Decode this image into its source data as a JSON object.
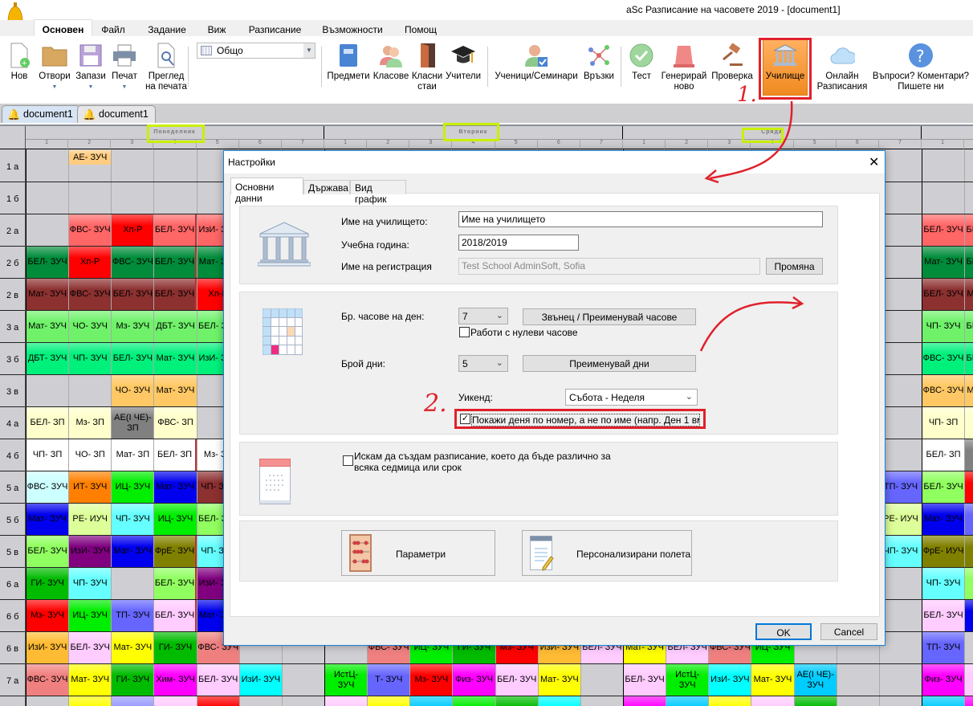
{
  "app": {
    "title": "aSc Разписание на часовете 2019  - [document1]"
  },
  "ribbon_tabs": [
    {
      "label": "Основен",
      "active": true
    },
    {
      "label": "Файл"
    },
    {
      "label": "Задание"
    },
    {
      "label": "Виж"
    },
    {
      "label": "Разписание"
    },
    {
      "label": "Възможности"
    },
    {
      "label": "Помощ"
    }
  ],
  "ribbon": {
    "new": "Нов",
    "open": "Отвори",
    "save": "Запази",
    "print": "Печат",
    "preview_1": "Преглед",
    "preview_2": "на печата",
    "view_select": "Общо",
    "subjects": "Предмети",
    "classes": "Класове",
    "rooms_1": "Класни",
    "rooms_2": "стаи",
    "teachers": "Учители",
    "students": "Ученици/Семинари",
    "relations": "Връзки",
    "test": "Тест",
    "generate_1": "Генерирай",
    "generate_2": "ново",
    "check": "Проверка",
    "school": "Училище",
    "online_1": "Онлайн",
    "online_2": "Разписания",
    "help_1": "Въпроси? Коментари?",
    "help_2": "Пишете ни"
  },
  "doc_tabs": [
    "document1",
    "document1"
  ],
  "grid": {
    "days": [
      "Понеделник",
      "Вторник",
      "Сряда",
      ""
    ],
    "periods": [
      "1",
      "2",
      "3",
      "4",
      "5",
      "6",
      "7"
    ],
    "rows": [
      {
        "label": "1 а",
        "cells": [
          {
            "c": 1,
            "t": "АЕ- ЗУЧ",
            "bg": "#ffcc80",
            "half": true
          }
        ]
      },
      {
        "label": "1 б",
        "cells": []
      },
      {
        "label": "2 а",
        "cells": [
          {
            "c": 1,
            "t": "ФВС- ЗУЧ",
            "bg": "#ff6666"
          },
          {
            "c": 2,
            "t": "Хп-Р",
            "bg": "#ff0000"
          },
          {
            "c": 3,
            "t": "БЕЛ- ЗУЧ",
            "bg": "#ff6666"
          },
          {
            "c": 4,
            "t": "ИзИ- ЗУЧ",
            "bg": "#ff6666"
          },
          {
            "c": 21,
            "t": "БЕЛ- ЗУЧ",
            "bg": "#ff6666"
          },
          {
            "c": 22,
            "t": "БЕЛ- ЗУЧ",
            "bg": "#ff6666"
          }
        ]
      },
      {
        "label": "2 б",
        "cells": [
          {
            "c": 0,
            "t": "БЕЛ- ЗУЧ",
            "bg": "#008c3a"
          },
          {
            "c": 1,
            "t": "Хп-Р",
            "bg": "#ff0000"
          },
          {
            "c": 2,
            "t": "ФВС- ЗУЧ",
            "bg": "#008c3a"
          },
          {
            "c": 3,
            "t": "БЕЛ- ЗУЧ",
            "bg": "#008c3a"
          },
          {
            "c": 4,
            "t": "Мат- ЗУЧ",
            "bg": "#008c3a"
          },
          {
            "c": 21,
            "t": "Мат- ЗУЧ",
            "bg": "#008c3a"
          },
          {
            "c": 22,
            "t": "БЕЛ- ЗУЧ",
            "bg": "#008c3a"
          }
        ]
      },
      {
        "label": "2 в",
        "cells": [
          {
            "c": 0,
            "t": "Мат- ЗУЧ",
            "bg": "#8c3030"
          },
          {
            "c": 1,
            "t": "ФВС- ЗУЧ",
            "bg": "#8c3030"
          },
          {
            "c": 2,
            "t": "БЕЛ- ЗУЧ",
            "bg": "#8c3030"
          },
          {
            "c": 3,
            "t": "БЕЛ- ЗУЧ",
            "bg": "#8c3030"
          },
          {
            "c": 4,
            "t": "Хп-Р",
            "bg": "#ff0000"
          },
          {
            "c": 21,
            "t": "БЕЛ- ЗУЧ",
            "bg": "#8c3030"
          },
          {
            "c": 22,
            "t": "Мат- ЗУЧ",
            "bg": "#8c3030"
          }
        ]
      },
      {
        "label": "3 а",
        "cells": [
          {
            "c": 0,
            "t": "Мат- ЗУЧ",
            "bg": "#6ff26a"
          },
          {
            "c": 1,
            "t": "ЧО- ЗУЧ",
            "bg": "#6ff26a"
          },
          {
            "c": 2,
            "t": "Мз- ЗУЧ",
            "bg": "#6ff26a"
          },
          {
            "c": 3,
            "t": "ДБТ- ЗУЧ",
            "bg": "#6ff26a"
          },
          {
            "c": 4,
            "t": "БЕЛ- ЗУЧ",
            "bg": "#6ff26a"
          },
          {
            "c": 21,
            "t": "ЧП- ЗУЧ",
            "bg": "#6ff26a"
          },
          {
            "c": 22,
            "t": "БЕЛ- ЗУЧ",
            "bg": "#6ff26a"
          }
        ]
      },
      {
        "label": "3 б",
        "cells": [
          {
            "c": 0,
            "t": "ДБТ- ЗУЧ",
            "bg": "#00f07c"
          },
          {
            "c": 1,
            "t": "ЧП- ЗУЧ",
            "bg": "#00f07c"
          },
          {
            "c": 2,
            "t": "БЕЛ- ЗУЧ",
            "bg": "#00f07c"
          },
          {
            "c": 3,
            "t": "Мат- ЗУЧ",
            "bg": "#00f07c"
          },
          {
            "c": 4,
            "t": "ИзИ- ЗУЧ",
            "bg": "#00f07c"
          },
          {
            "c": 21,
            "t": "ФВС- ЗУЧ",
            "bg": "#00f07c"
          },
          {
            "c": 22,
            "t": "БЕЛ- ЗУЧ",
            "bg": "#00f07c"
          }
        ]
      },
      {
        "label": "3 в",
        "cells": [
          {
            "c": 2,
            "t": "ЧО- ЗУЧ",
            "bg": "#ffc864"
          },
          {
            "c": 3,
            "t": "Мат- ЗУЧ",
            "bg": "#ffc864"
          },
          {
            "c": 21,
            "t": "ФВС- ЗУЧ",
            "bg": "#ffc864"
          },
          {
            "c": 22,
            "t": "Мат- ЗУЧ",
            "bg": "#ffc864"
          }
        ]
      },
      {
        "label": "4 а",
        "cells": [
          {
            "c": 0,
            "t": "БЕЛ- ЗП",
            "bg": "#ffffcc"
          },
          {
            "c": 1,
            "t": "Мз- ЗП",
            "bg": "#ffffcc"
          },
          {
            "c": 2,
            "t": "АЕ(І ЧЕ)- ЗП",
            "bg": "#808080"
          },
          {
            "c": 3,
            "t": "ФВС- ЗП",
            "bg": "#ffffcc"
          },
          {
            "c": 21,
            "t": "ЧП- ЗП",
            "bg": "#ffffcc"
          },
          {
            "c": 22,
            "t": "И",
            "bg": "#ffffcc"
          }
        ]
      },
      {
        "label": "4 б",
        "cells": [
          {
            "c": 0,
            "t": "ЧП- ЗП",
            "bg": "#ffffff"
          },
          {
            "c": 1,
            "t": "ЧО- ЗП",
            "bg": "#ffffff"
          },
          {
            "c": 2,
            "t": "Мат- ЗП",
            "bg": "#ffffff"
          },
          {
            "c": 3,
            "t": "БЕЛ- ЗП",
            "bg": "#ffffff"
          },
          {
            "c": 4,
            "t": "Мз- ЗП",
            "bg": "#ffffff"
          },
          {
            "c": 21,
            "t": "БЕЛ- ЗП",
            "bg": "#ffffff"
          },
          {
            "c": 22,
            "t": "А З",
            "bg": "#808080"
          }
        ]
      },
      {
        "label": "5 а",
        "cells": [
          {
            "c": 0,
            "t": "ФВС- ЗУЧ",
            "bg": "#ccffff"
          },
          {
            "c": 1,
            "t": "ИТ- ЗУЧ",
            "bg": "#ff8000"
          },
          {
            "c": 2,
            "t": "ИЦ- ЗУЧ",
            "bg": "#00ee00"
          },
          {
            "c": 3,
            "t": "Мат- ЗУЧ",
            "bg": "#0000ee"
          },
          {
            "c": 4,
            "t": "ЧП- ЗУЧ",
            "bg": "#8c3030"
          },
          {
            "c": 20,
            "t": "ТП- ЗУЧ",
            "bg": "#6666ff"
          },
          {
            "c": 21,
            "t": "БЕЛ- ЗУЧ",
            "bg": "#90ff60"
          },
          {
            "c": 22,
            "t": "М",
            "bg": "#ff0000"
          }
        ]
      },
      {
        "label": "5 б",
        "cells": [
          {
            "c": 0,
            "t": "Мат- ЗУЧ",
            "bg": "#0000ee"
          },
          {
            "c": 1,
            "t": "РЕ- ИУЧ",
            "bg": "#ddff99"
          },
          {
            "c": 2,
            "t": "ЧП- ЗУЧ",
            "bg": "#66ffff"
          },
          {
            "c": 3,
            "t": "ИЦ- ЗУЧ",
            "bg": "#00ee00"
          },
          {
            "c": 4,
            "t": "БЕЛ- ЗУЧ",
            "bg": "#90ff60"
          },
          {
            "c": 20,
            "t": "РЕ- ИУЧ",
            "bg": "#ddff99"
          },
          {
            "c": 21,
            "t": "Мат- ЗУЧ",
            "bg": "#0000ee"
          },
          {
            "c": 22,
            "t": "Т",
            "bg": "#6666ff"
          }
        ]
      },
      {
        "label": "5 в",
        "cells": [
          {
            "c": 0,
            "t": "БЕЛ- ЗУЧ",
            "bg": "#90ff60"
          },
          {
            "c": 1,
            "t": "ИзИ- ЗУЧ",
            "bg": "#800080"
          },
          {
            "c": 2,
            "t": "Мат- ЗУЧ",
            "bg": "#0000ee"
          },
          {
            "c": 3,
            "t": "ФрЕ- ЗУЧ",
            "bg": "#808000"
          },
          {
            "c": 4,
            "t": "ЧП- ЗУЧ",
            "bg": "#66ffff"
          },
          {
            "c": 20,
            "t": "ЧП- ЗУЧ",
            "bg": "#66ffff"
          },
          {
            "c": 21,
            "t": "ФрЕ- ИУЧ",
            "bg": "#808000"
          },
          {
            "c": 22,
            "t": "Ф",
            "bg": "#808000"
          }
        ]
      },
      {
        "label": "6 а",
        "cells": [
          {
            "c": 0,
            "t": "ГИ- ЗУЧ",
            "bg": "#00bb00"
          },
          {
            "c": 1,
            "t": "ЧП- ЗУЧ",
            "bg": "#66ffff"
          },
          {
            "c": 3,
            "t": "БЕЛ- ЗУЧ",
            "bg": "#90ff60"
          },
          {
            "c": 4,
            "t": "ИзИ- ЗУЧ",
            "bg": "#800080"
          },
          {
            "c": 21,
            "t": "ЧП- ЗУЧ",
            "bg": "#66ffff"
          },
          {
            "c": 22,
            "t": "Б",
            "bg": "#90ff60"
          }
        ]
      },
      {
        "label": "6 б",
        "cells": [
          {
            "c": 0,
            "t": "Мз- ЗУЧ",
            "bg": "#ff0000"
          },
          {
            "c": 1,
            "t": "ИЦ- ЗУЧ",
            "bg": "#00ee00"
          },
          {
            "c": 2,
            "t": "ТП- ЗУЧ",
            "bg": "#6666ff"
          },
          {
            "c": 3,
            "t": "БЕЛ- ЗУЧ",
            "bg": "#ffccff"
          },
          {
            "c": 4,
            "t": "Мат- ЗУЧ",
            "bg": "#0000ee"
          },
          {
            "c": 21,
            "t": "БЕЛ- ЗУЧ",
            "bg": "#ffccff"
          },
          {
            "c": 22,
            "t": "М",
            "bg": "#0000ee"
          }
        ]
      },
      {
        "label": "6 в",
        "cells": [
          {
            "c": 0,
            "t": "ИзИ- ЗУЧ",
            "bg": "#ffbb33"
          },
          {
            "c": 1,
            "t": "БЕЛ- ЗУЧ",
            "bg": "#ffccff"
          },
          {
            "c": 2,
            "t": "Мат- ЗУЧ",
            "bg": "#ffff00"
          },
          {
            "c": 3,
            "t": "ГИ- ЗУЧ",
            "bg": "#00bb00"
          },
          {
            "c": 4,
            "t": "ФВС- ЗУЧ",
            "bg": "#f08080"
          },
          {
            "c": 8,
            "t": "ФВС- ЗУЧ",
            "bg": "#f08080"
          },
          {
            "c": 9,
            "t": "ИЦ- ЗУЧ",
            "bg": "#00ee00"
          },
          {
            "c": 10,
            "t": "ГИ- ЗУЧ",
            "bg": "#00bb00"
          },
          {
            "c": 11,
            "t": "Мз- ЗУЧ",
            "bg": "#ff0000"
          },
          {
            "c": 12,
            "t": "ИзИ- ЗУЧ",
            "bg": "#ffbb33"
          },
          {
            "c": 13,
            "t": "БЕЛ- ЗУЧ",
            "bg": "#ffccff"
          },
          {
            "c": 14,
            "t": "Мат- ЗУЧ",
            "bg": "#ffff00"
          },
          {
            "c": 15,
            "t": "БЕЛ- ЗУЧ",
            "bg": "#ffccff"
          },
          {
            "c": 16,
            "t": "ФВС- ЗУЧ",
            "bg": "#f08080"
          },
          {
            "c": 17,
            "t": "ИЦ- ЗУЧ",
            "bg": "#00ee00"
          },
          {
            "c": 21,
            "t": "ТП- ЗУЧ",
            "bg": "#6666ff"
          }
        ]
      },
      {
        "label": "7 а",
        "cells": [
          {
            "c": 0,
            "t": "ФВС- ЗУЧ",
            "bg": "#f08080"
          },
          {
            "c": 1,
            "t": "Мат- ЗУЧ",
            "bg": "#ffff00"
          },
          {
            "c": 2,
            "t": "ГИ- ЗУЧ",
            "bg": "#00bb00"
          },
          {
            "c": 3,
            "t": "Хим- ЗУЧ",
            "bg": "#ff00ff"
          },
          {
            "c": 4,
            "t": "БЕЛ- ЗУЧ",
            "bg": "#ffccff"
          },
          {
            "c": 5,
            "t": "ИзИ- ЗУЧ",
            "bg": "#00ffff"
          },
          {
            "c": 7,
            "t": "ИстЦ- ЗУЧ",
            "bg": "#00ee00"
          },
          {
            "c": 8,
            "t": "Т- ЗУЧ",
            "bg": "#6666ff"
          },
          {
            "c": 9,
            "t": "Мз- ЗУЧ",
            "bg": "#ff0000"
          },
          {
            "c": 10,
            "t": "Физ- ЗУЧ",
            "bg": "#ff00ff"
          },
          {
            "c": 11,
            "t": "БЕЛ- ЗУЧ",
            "bg": "#ffccff"
          },
          {
            "c": 12,
            "t": "Мат- ЗУЧ",
            "bg": "#ffff00"
          },
          {
            "c": 14,
            "t": "БЕЛ- ЗУЧ",
            "bg": "#ffccff"
          },
          {
            "c": 15,
            "t": "ИстЦ- ЗУЧ",
            "bg": "#00ee00"
          },
          {
            "c": 16,
            "t": "ИзИ- ЗУЧ",
            "bg": "#00ffff"
          },
          {
            "c": 17,
            "t": "Мат- ЗУЧ",
            "bg": "#ffff00"
          },
          {
            "c": 18,
            "t": "АЕ(І ЧЕ)- ЗУЧ",
            "bg": "#00ccff"
          },
          {
            "c": 21,
            "t": "Физ- ЗУЧ",
            "bg": "#ff00ff"
          },
          {
            "c": 22,
            "t": "Б",
            "bg": "#ffccff"
          }
        ]
      },
      {
        "label": "",
        "cells": [
          {
            "c": 1,
            "t": "",
            "bg": "#ffff00"
          },
          {
            "c": 2,
            "t": "",
            "bg": "#9999ff"
          },
          {
            "c": 3,
            "t": "",
            "bg": "#ffccff"
          },
          {
            "c": 4,
            "t": "",
            "bg": "#ff0000"
          },
          {
            "c": 7,
            "t": "",
            "bg": "#ffccff"
          },
          {
            "c": 8,
            "t": "",
            "bg": "#ffff00"
          },
          {
            "c": 9,
            "t": "АЕ(І ЧЕ)-",
            "bg": "#00ccff"
          },
          {
            "c": 10,
            "t": "ИстЦ",
            "bg": "#00ee00"
          },
          {
            "c": 11,
            "t": "",
            "bg": "#00bb00"
          },
          {
            "c": 12,
            "t": "",
            "bg": "#00ffff"
          },
          {
            "c": 14,
            "t": "",
            "bg": "#ff00ff"
          },
          {
            "c": 15,
            "t": "АЕ(І ЧЕ)-",
            "bg": "#00ccff"
          },
          {
            "c": 16,
            "t": "",
            "bg": "#ffff00"
          },
          {
            "c": 17,
            "t": "",
            "bg": "#ffccff"
          },
          {
            "c": 18,
            "t": "",
            "bg": "#00bb00"
          },
          {
            "c": 21,
            "t": "АЕ(І ЧЕ)-",
            "bg": "#00ccff"
          },
          {
            "c": 22,
            "t": "",
            "bg": "#ff00ff"
          }
        ]
      }
    ]
  },
  "dialog": {
    "title": "Настройки",
    "tabs": [
      "Основни данни",
      "Държава",
      "Вид график"
    ],
    "school_name_label": "Име на училището:",
    "school_name_value": "Име на училището",
    "year_label": "Учебна година:",
    "year_value": "2018/2019",
    "reg_label": "Име на регистрация",
    "reg_value": "Test School AdminSoft, Sofia",
    "change_button": "Промяна",
    "hours_label": "Бр. часове на ден:",
    "hours_value": "7",
    "bell_button": "Звънец / Преименувай часове",
    "zero_hours_label": "Работи с нулеви часове",
    "zero_hours_checked": false,
    "days_label": "Брой дни:",
    "days_value": "5",
    "rename_days_button": "Преименувай дни",
    "weekend_label": "Уикенд:",
    "weekend_value": "Събота - Неделя",
    "day_number_label": "Покажи деня по номер, а не по име (напр. Ден 1 вмест",
    "day_number_checked": true,
    "weekly_label_1": "Искам да създам разписание, което да бъде различно за",
    "weekly_label_2": "всяка седмица или срок",
    "weekly_checked": false,
    "params_button": "Параметри",
    "custom_fields_button": "Персонализирани полета",
    "ok": "OK",
    "cancel": "Cancel"
  },
  "annotations": {
    "step1": "1.",
    "step2": "2.",
    "color": "#e0202a",
    "highlight": "#c8f000"
  }
}
